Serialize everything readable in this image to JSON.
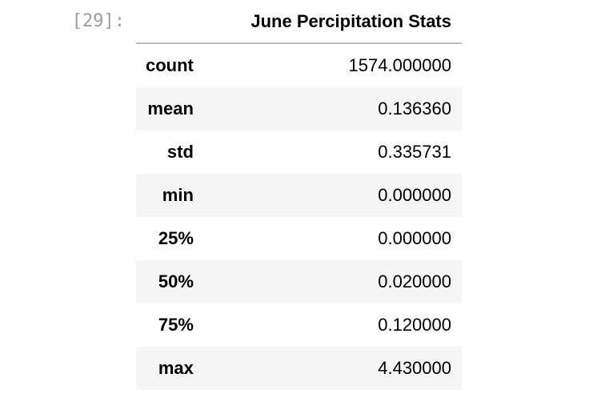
{
  "cell": {
    "prompt": "[29]:"
  },
  "table": {
    "column_header": "June Percipitation Stats",
    "rows": [
      {
        "label": "count",
        "value": "1574.000000"
      },
      {
        "label": "mean",
        "value": "0.136360"
      },
      {
        "label": "std",
        "value": "0.335731"
      },
      {
        "label": "min",
        "value": "0.000000"
      },
      {
        "label": "25%",
        "value": "0.000000"
      },
      {
        "label": "50%",
        "value": "0.020000"
      },
      {
        "label": "75%",
        "value": "0.120000"
      },
      {
        "label": "max",
        "value": "4.430000"
      }
    ]
  },
  "colors": {
    "prompt": "#9e9e9e",
    "stripe": "#f5f5f5",
    "header_rule": "#bdbdbd"
  }
}
